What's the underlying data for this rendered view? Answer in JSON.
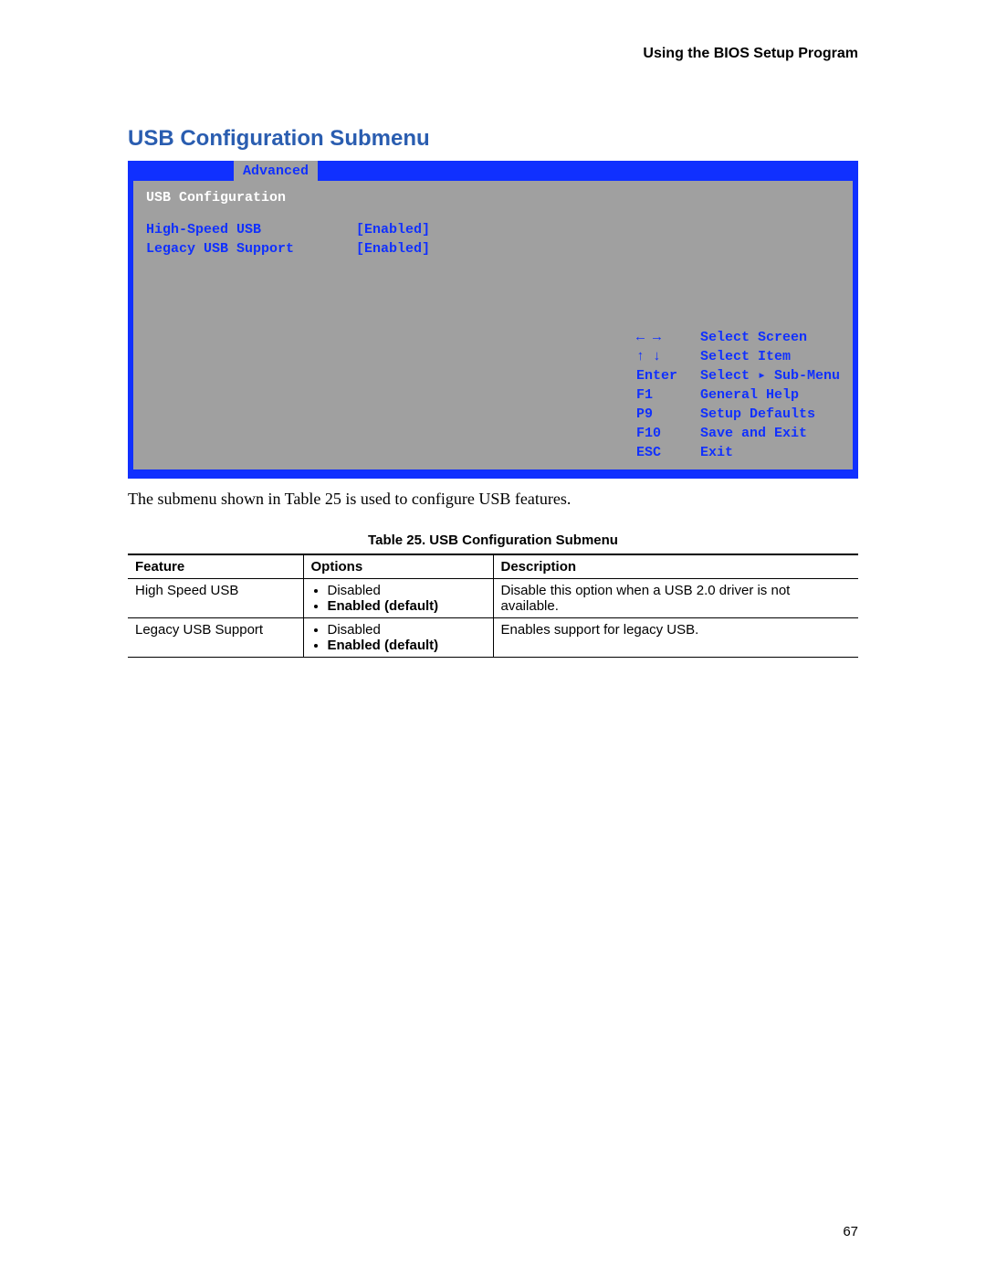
{
  "header": {
    "right": "Using the BIOS Setup Program"
  },
  "section": {
    "title": "USB Configuration Submenu"
  },
  "bios": {
    "tab": "Advanced",
    "section_label": "USB Configuration",
    "rows": [
      {
        "label": "High-Speed USB",
        "value": "[Enabled]"
      },
      {
        "label": "Legacy USB Support",
        "value": "[Enabled]"
      }
    ],
    "legend": [
      {
        "key": "← →",
        "action": "Select Screen"
      },
      {
        "key": "↑ ↓",
        "action": "Select Item"
      },
      {
        "key": "Enter",
        "action": "Select ▸ Sub-Menu"
      },
      {
        "key": "F1",
        "action": "General Help"
      },
      {
        "key": "P9",
        "action": "Setup Defaults"
      },
      {
        "key": "F10",
        "action": "Save and Exit"
      },
      {
        "key": "ESC",
        "action": "Exit"
      }
    ],
    "colors": {
      "bar": "#1030ff",
      "body_bg": "#a0a0a0",
      "text_blue": "#1030ff",
      "text_white": "#ffffff"
    }
  },
  "caption_text": "The submenu shown in Table 25 is used to configure USB features.",
  "table": {
    "caption": "Table 25.    USB Configuration Submenu",
    "columns": [
      "Feature",
      "Options",
      "Description"
    ],
    "rows": [
      {
        "feature": "High Speed USB",
        "options": [
          {
            "text": "Disabled",
            "bold": false
          },
          {
            "text": "Enabled (default)",
            "bold": true
          }
        ],
        "description": "Disable this option when a USB 2.0 driver is not available."
      },
      {
        "feature": "Legacy USB Support",
        "options": [
          {
            "text": "Disabled",
            "bold": false
          },
          {
            "text": "Enabled (default)",
            "bold": true
          }
        ],
        "description": "Enables support for legacy USB."
      }
    ],
    "col_widths": [
      "24%",
      "26%",
      "50%"
    ]
  },
  "page_number": "67"
}
